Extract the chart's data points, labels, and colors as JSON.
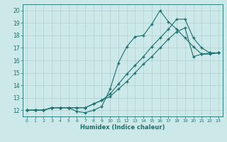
{
  "xlabel": "Humidex (Indice chaleur)",
  "xlim": [
    -0.5,
    23.5
  ],
  "ylim": [
    11.5,
    20.5
  ],
  "xticks": [
    0,
    1,
    2,
    3,
    4,
    5,
    6,
    7,
    8,
    9,
    10,
    11,
    12,
    13,
    14,
    15,
    16,
    17,
    18,
    19,
    20,
    21,
    22,
    23
  ],
  "yticks": [
    12,
    13,
    14,
    15,
    16,
    17,
    18,
    19,
    20
  ],
  "background_color": "#cce8e8",
  "grid_color": "#b0d0d0",
  "line_color": "#1a7070",
  "lines": [
    {
      "x": [
        0,
        1,
        2,
        3,
        4,
        5,
        6,
        7,
        8,
        9,
        10,
        11,
        12,
        13,
        14,
        15,
        16,
        17,
        18,
        19,
        20,
        21,
        22,
        23
      ],
      "y": [
        12,
        12,
        12,
        12.2,
        12.2,
        12.2,
        11.9,
        11.8,
        12.0,
        12.3,
        13.7,
        15.8,
        17.1,
        17.9,
        18.0,
        18.9,
        20.0,
        19.1,
        18.5,
        17.8,
        17.1,
        16.5,
        16.5,
        16.6
      ]
    },
    {
      "x": [
        0,
        1,
        2,
        3,
        4,
        5,
        6,
        7,
        8,
        9,
        10,
        11,
        12,
        13,
        14,
        15,
        16,
        17,
        18,
        19,
        20,
        21,
        22,
        23
      ],
      "y": [
        12,
        12,
        12,
        12.2,
        12.2,
        12.2,
        12.2,
        12.2,
        12.5,
        12.8,
        13.3,
        14.1,
        14.9,
        15.6,
        16.3,
        17.1,
        17.8,
        18.5,
        19.3,
        19.3,
        17.8,
        17.0,
        16.6,
        16.6
      ]
    },
    {
      "x": [
        0,
        1,
        2,
        3,
        4,
        5,
        6,
        7,
        8,
        9,
        10,
        11,
        12,
        13,
        14,
        15,
        16,
        17,
        18,
        19,
        20,
        21,
        22,
        23
      ],
      "y": [
        12,
        12,
        12,
        12.2,
        12.2,
        12.2,
        12.2,
        12.2,
        12.5,
        12.8,
        13.1,
        13.7,
        14.3,
        15.0,
        15.7,
        16.3,
        17.0,
        17.7,
        18.3,
        18.6,
        16.3,
        16.5,
        16.6,
        16.6
      ]
    }
  ]
}
